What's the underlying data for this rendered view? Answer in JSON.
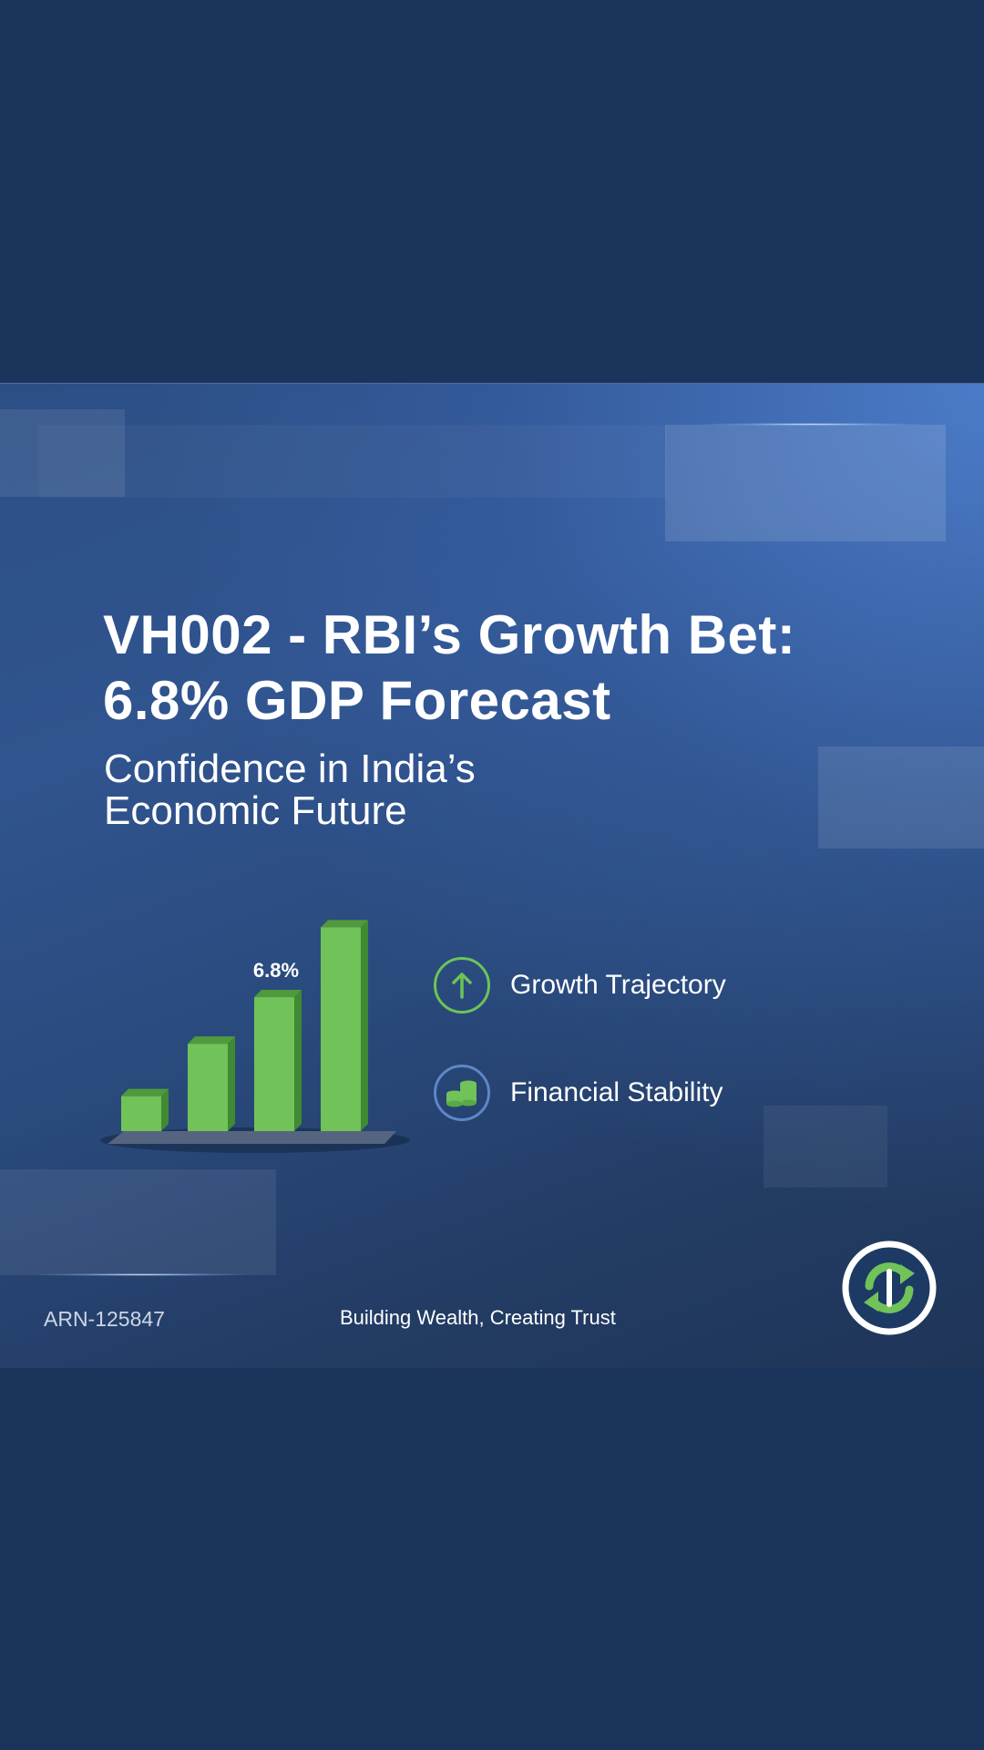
{
  "header": {
    "title_line1": "VH002 - RBI’s Growth Bet:",
    "title_line2": "6.8% GDP Forecast",
    "subtitle_line1": "Confidence in India’s",
    "subtitle_line2": "Economic Future"
  },
  "chart_data": {
    "type": "bar",
    "categories": [
      "",
      "",
      "",
      ""
    ],
    "values": [
      3.0,
      7.5,
      11.5,
      17.5
    ],
    "ylim": [
      0,
      18
    ],
    "data_labels": [
      "",
      "",
      "6.8%",
      ""
    ],
    "bar_color": "#72c25a",
    "bar_side_color": "#3f8a32",
    "bar_top_color": "#4f9a3c",
    "base_color": "#56657f",
    "grid": false,
    "legend": "none"
  },
  "features": [
    {
      "label": "Growth Trajectory",
      "icon": "up-arrow-circle-icon",
      "ring_color": "#6cc457"
    },
    {
      "label": "Financial Stability",
      "icon": "coins-stack-icon",
      "ring_color": "#5e86c8"
    }
  ],
  "footer": {
    "arn": "ARN-125847",
    "tagline": "Building Wealth, Creating Trust",
    "logo_icon": "circular-arrows-logo-icon"
  },
  "colors": {
    "page_background": "#1b345b",
    "accent_green": "#72c25a",
    "text_white": "#ffffff"
  }
}
